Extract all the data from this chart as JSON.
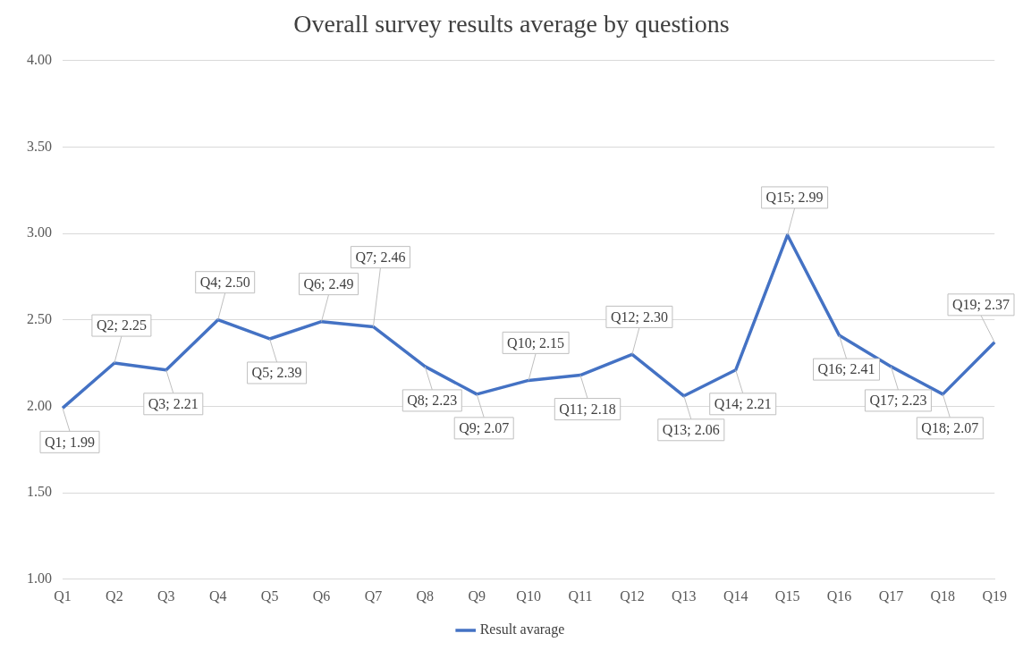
{
  "chart_data": {
    "type": "line",
    "title": "Overall survey results average by questions",
    "categories": [
      "Q1",
      "Q2",
      "Q3",
      "Q4",
      "Q5",
      "Q6",
      "Q7",
      "Q8",
      "Q9",
      "Q10",
      "Q11",
      "Q12",
      "Q13",
      "Q14",
      "Q15",
      "Q16",
      "Q17",
      "Q18",
      "Q19"
    ],
    "series": [
      {
        "name": "Result avarage",
        "color": "#4472c4",
        "values": [
          1.99,
          2.25,
          2.21,
          2.5,
          2.39,
          2.49,
          2.46,
          2.23,
          2.07,
          2.15,
          2.18,
          2.3,
          2.06,
          2.21,
          2.99,
          2.41,
          2.23,
          2.07,
          2.37
        ],
        "value_labels": [
          "Q1; 1.99",
          "Q2; 2.25",
          "Q3; 2.21",
          "Q4; 2.50",
          "Q5; 2.39",
          "Q6; 2.49",
          "Q7; 2.46",
          "Q8; 2.23",
          "Q9; 2.07",
          "Q10; 2.15",
          "Q11; 2.18",
          "Q12; 2.30",
          "Q13; 2.06",
          "Q14; 2.21",
          "Q15; 2.99",
          "Q16; 2.41",
          "Q17; 2.23",
          "Q18; 2.07",
          "Q19; 2.37"
        ]
      }
    ],
    "ylim": [
      1,
      4
    ],
    "yticks": [
      {
        "value": 1,
        "label": "1.00"
      },
      {
        "value": 1.5,
        "label": "1.50"
      },
      {
        "value": 2,
        "label": "2.00"
      },
      {
        "value": 2.5,
        "label": "2.50"
      },
      {
        "value": 3,
        "label": "3.00"
      },
      {
        "value": 3.5,
        "label": "3.50"
      },
      {
        "value": 4,
        "label": "4.00"
      }
    ],
    "grid": "y",
    "legend": "bottom",
    "marker": "none",
    "line_style": "solid"
  }
}
